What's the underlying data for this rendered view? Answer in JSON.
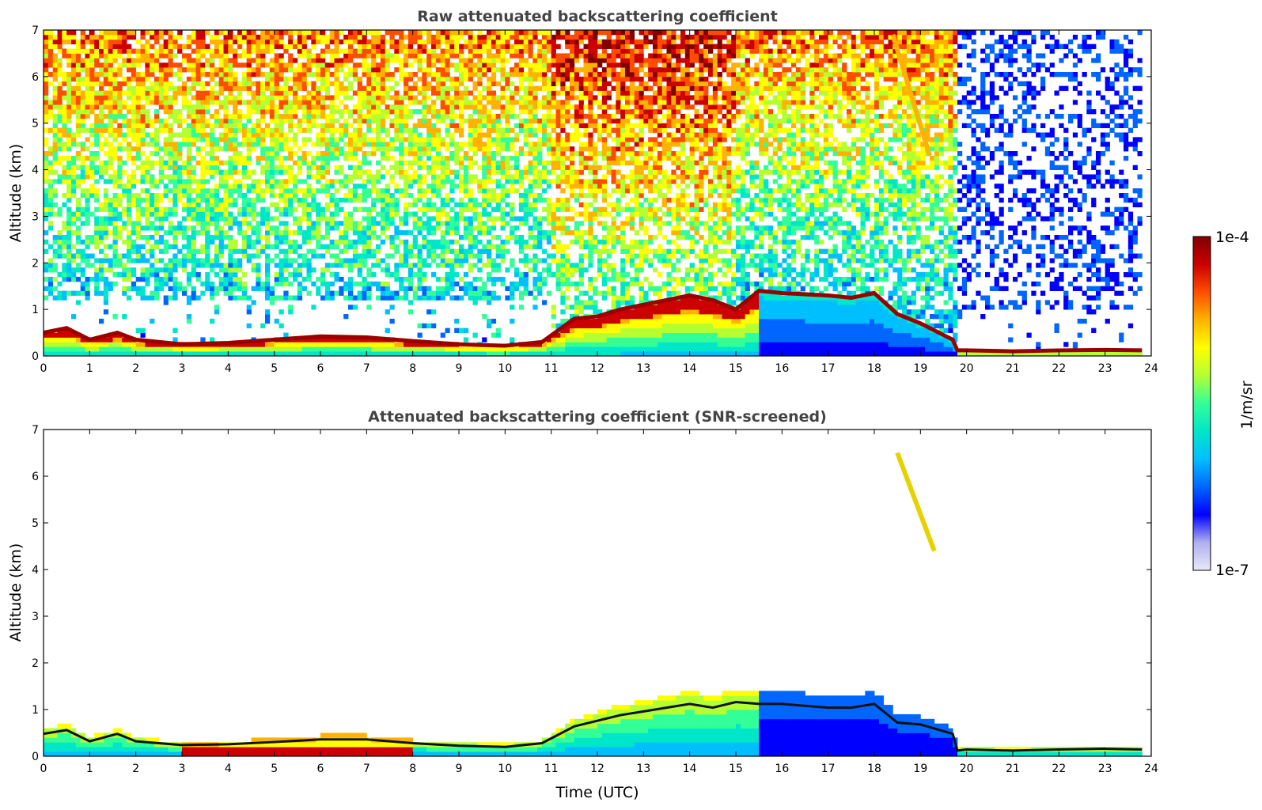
{
  "chart_data": [
    {
      "type": "heatmap",
      "title": "Raw attenuated backscattering coefficient",
      "xlabel": "",
      "ylabel": "Altitude (km)",
      "xlim": [
        0,
        24
      ],
      "ylim": [
        0,
        7
      ],
      "x_ticks": [
        0,
        1,
        2,
        3,
        4,
        5,
        6,
        7,
        8,
        9,
        10,
        11,
        12,
        13,
        14,
        15,
        16,
        17,
        18,
        19,
        20,
        21,
        22,
        23,
        24
      ],
      "y_ticks": [
        0,
        1,
        2,
        3,
        4,
        5,
        6,
        7
      ],
      "background_gradient": {
        "times": [
          0,
          3,
          6,
          8,
          10,
          12,
          13,
          15,
          16.5,
          18,
          19.7,
          20,
          23.8
        ],
        "low_level": [
          0.45,
          0.32,
          0.35,
          0.25,
          0.15,
          0.45,
          0.6,
          0.45,
          0.35,
          0.3,
          0.25,
          0.9,
          0.9
        ]
      },
      "boundary_layer_top": {
        "times": [
          0,
          0.5,
          1,
          1.6,
          2,
          3,
          4,
          5,
          6,
          7,
          8,
          9,
          10,
          10.8,
          11.5,
          12,
          12.5,
          13,
          13.5,
          14,
          14.5,
          15,
          15.5,
          16,
          17,
          17.5,
          18,
          18.5,
          19,
          19.7,
          19.8,
          20,
          21,
          22,
          23,
          23.8
        ],
        "altitude_km": [
          0.5,
          0.6,
          0.35,
          0.5,
          0.35,
          0.25,
          0.28,
          0.35,
          0.42,
          0.4,
          0.32,
          0.25,
          0.22,
          0.3,
          0.8,
          0.85,
          1.0,
          1.1,
          1.2,
          1.3,
          1.2,
          1.0,
          1.4,
          1.35,
          1.3,
          1.25,
          1.35,
          0.9,
          0.7,
          0.35,
          0.12,
          0.12,
          0.1,
          0.12,
          0.13,
          0.12
        ]
      },
      "cirrus_layer": {
        "time_range": [
          18.4,
          19.6
        ],
        "top_km": [
          6.9,
          4.3
        ],
        "note": ""
      }
    },
    {
      "type": "heatmap",
      "title": "Attenuated backscattering coefficient (SNR-screened)",
      "xlabel": "Time (UTC)",
      "ylabel": "Altitude (km)",
      "xlim": [
        0,
        24
      ],
      "ylim": [
        0,
        7
      ],
      "x_ticks": [
        0,
        1,
        2,
        3,
        4,
        5,
        6,
        7,
        8,
        9,
        10,
        11,
        12,
        13,
        14,
        15,
        16,
        17,
        18,
        19,
        20,
        21,
        22,
        23,
        24
      ],
      "y_ticks": [
        0,
        1,
        2,
        3,
        4,
        5,
        6,
        7
      ],
      "boundary_layer_top": {
        "times": [
          0,
          0.5,
          1,
          1.6,
          2,
          3,
          4,
          5,
          6,
          7,
          8,
          9,
          10,
          10.8,
          11.5,
          12,
          12.5,
          13,
          13.5,
          14,
          14.5,
          15,
          15.5,
          16,
          17,
          17.5,
          18,
          18.5,
          19,
          19.7,
          19.8,
          20,
          21,
          22,
          23,
          23.8
        ],
        "altitude_km": [
          0.6,
          0.7,
          0.4,
          0.6,
          0.4,
          0.3,
          0.32,
          0.38,
          0.45,
          0.45,
          0.35,
          0.28,
          0.25,
          0.35,
          0.8,
          0.95,
          1.1,
          1.2,
          1.3,
          1.4,
          1.3,
          1.45,
          1.4,
          1.4,
          1.3,
          1.3,
          1.4,
          0.9,
          0.85,
          0.6,
          0.15,
          0.18,
          0.15,
          0.18,
          0.2,
          0.18
        ]
      },
      "cirrus_layer": {
        "time_range": [
          18.5,
          19.3
        ],
        "top_km": [
          6.5,
          4.4
        ],
        "note": ""
      }
    }
  ],
  "colorbar": {
    "label": "1/m/sr",
    "max_label": "1e-4",
    "min_label": "1e-7",
    "scale": "log",
    "range": [
      1e-07,
      0.0001
    ],
    "colors": [
      "#e8e8f8",
      "#b0b0f0",
      "#0000ff",
      "#0066ff",
      "#00bfff",
      "#00e6c8",
      "#33ff99",
      "#b3ff33",
      "#ffff00",
      "#ffb300",
      "#ff4d00",
      "#cc0000",
      "#800000"
    ]
  }
}
